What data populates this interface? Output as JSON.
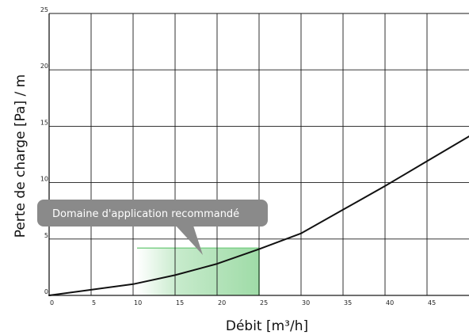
{
  "chart_data": {
    "type": "line",
    "title": "",
    "xlabel": "Débit [m³/h]",
    "ylabel": "Perte de charge [Pa] / m",
    "xlim": [
      0,
      50
    ],
    "ylim": [
      0,
      25
    ],
    "x_ticks": [
      0,
      5,
      10,
      15,
      20,
      25,
      30,
      35,
      40,
      45
    ],
    "x_tick_labels": [
      "0",
      "5",
      "10",
      "15",
      "20",
      "25",
      "30",
      "35",
      "40",
      "45"
    ],
    "y_ticks": [
      0,
      5,
      10,
      15,
      20,
      25
    ],
    "y_tick_labels": [
      "0",
      "5",
      "10",
      "15",
      "20",
      "25"
    ],
    "grid": true,
    "legend": "none",
    "series": [
      {
        "color": "#111111",
        "x": [
          0,
          5,
          10,
          15,
          20,
          25,
          30,
          35,
          40,
          45,
          50
        ],
        "y": [
          0,
          0.5,
          1.0,
          1.8,
          2.8,
          4.1,
          5.5,
          7.6,
          9.7,
          11.9,
          14.1
        ]
      }
    ],
    "recommended_range": {
      "x_start": 10,
      "x_end": 25,
      "y_top": 4.2,
      "color": "#7fd08a",
      "label": "Domaine d'application recommandé"
    }
  }
}
